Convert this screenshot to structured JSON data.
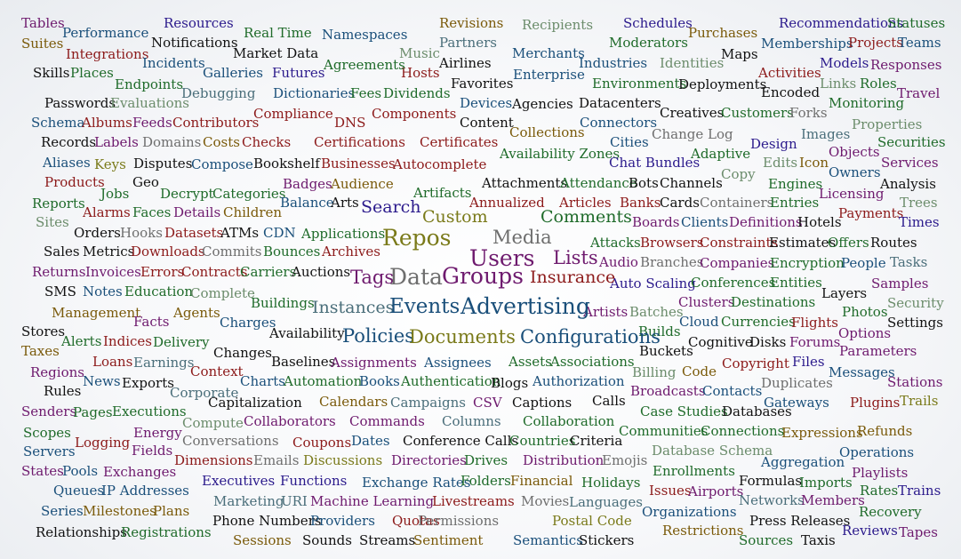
{
  "colors": {
    "1": "#2b1a8c",
    "2": "#7a5a0a",
    "3": "#1f6b2a",
    "4": "#6e1a6e",
    "5": "#8c1a1a",
    "6": "#1a4f7a",
    "7": "#4a6e7a",
    "8": "#6b8c6b",
    "9": "#111111",
    "10": "#6e6e6e",
    "11": "#7a7a1a"
  },
  "words": [
    [
      "Tables",
      4,
      14
    ],
    [
      "Suites",
      2,
      14
    ],
    [
      "Skills",
      9,
      14
    ],
    [
      "Passwords",
      9,
      14
    ],
    [
      "Schema",
      6,
      14
    ],
    [
      "Records",
      9,
      14
    ],
    [
      "Aliases",
      6,
      14
    ],
    [
      "Products",
      5,
      14
    ],
    [
      "Reports",
      3,
      14
    ],
    [
      "Sites",
      8,
      14
    ],
    [
      "Sales",
      9,
      14
    ],
    [
      "Returns",
      4,
      14
    ],
    [
      "SMS",
      9,
      14
    ],
    [
      "Stores",
      9,
      14
    ],
    [
      "Taxes",
      2,
      14
    ],
    [
      "Regions",
      4,
      14
    ],
    [
      "Rules",
      9,
      14
    ],
    [
      "Senders",
      4,
      14
    ],
    [
      "Scopes",
      3,
      14
    ],
    [
      "Servers",
      6,
      14
    ],
    [
      "States",
      4,
      14
    ],
    [
      "Queues",
      6,
      14
    ],
    [
      "Series",
      6,
      14
    ],
    [
      "Relationships",
      9,
      14
    ],
    [
      "Performance",
      6,
      14
    ],
    [
      "Integrations",
      5,
      14
    ],
    [
      "Places",
      3,
      14
    ],
    [
      "Endpoints",
      3,
      14
    ],
    [
      "Evaluations",
      8,
      14
    ],
    [
      "Albums",
      5,
      14
    ],
    [
      "Feeds",
      4,
      14
    ],
    [
      "Labels",
      4,
      14
    ],
    [
      "Keys",
      11,
      14
    ],
    [
      "Geo",
      9,
      14
    ],
    [
      "Jobs",
      3,
      14
    ],
    [
      "Alarms",
      5,
      14
    ],
    [
      "Faces",
      3,
      14
    ],
    [
      "Orders",
      9,
      14
    ],
    [
      "Hooks",
      10,
      14
    ],
    [
      "Metrics",
      9,
      14
    ],
    [
      "Invoices",
      4,
      14
    ],
    [
      "Notes",
      6,
      14
    ],
    [
      "Management",
      2,
      14
    ],
    [
      "Alerts",
      3,
      14
    ],
    [
      "Indices",
      5,
      14
    ],
    [
      "Loans",
      5,
      14
    ],
    [
      "News",
      6,
      14
    ],
    [
      "Pages",
      3,
      14
    ],
    [
      "Logging",
      5,
      14
    ],
    [
      "Pools",
      6,
      14
    ],
    [
      "IP Addresses",
      6,
      14
    ],
    [
      "Milestones",
      2,
      14
    ],
    [
      "Registrations",
      3,
      14
    ],
    [
      "Resources",
      1,
      14
    ],
    [
      "Notifications",
      9,
      14
    ],
    [
      "Incidents",
      6,
      14
    ],
    [
      "Galleries",
      6,
      14
    ],
    [
      "Debugging",
      7,
      14
    ],
    [
      "Contributors",
      5,
      14
    ],
    [
      "Domains",
      10,
      14
    ],
    [
      "Disputes",
      9,
      14
    ],
    [
      "Decrypt",
      3,
      14
    ],
    [
      "Details",
      4,
      14
    ],
    [
      "Datasets",
      5,
      14
    ],
    [
      "Downloads",
      5,
      14
    ],
    [
      "Errors",
      5,
      14
    ],
    [
      "Education",
      3,
      14
    ],
    [
      "Facts",
      4,
      14
    ],
    [
      "Agents",
      2,
      14
    ],
    [
      "Delivery",
      3,
      14
    ],
    [
      "Earnings",
      7,
      14
    ],
    [
      "Exports",
      9,
      14
    ],
    [
      "Executions",
      3,
      14
    ],
    [
      "Energy",
      4,
      14
    ],
    [
      "Fields",
      4,
      14
    ],
    [
      "Exchanges",
      4,
      14
    ],
    [
      "Dimensions",
      5,
      14
    ],
    [
      "Executives",
      1,
      14
    ],
    [
      "Plans",
      2,
      14
    ],
    [
      "Real Time",
      3,
      14
    ],
    [
      "Market Data",
      9,
      14
    ],
    [
      "Futures",
      1,
      14
    ],
    [
      "Compliance",
      5,
      14
    ],
    [
      "Costs",
      2,
      14
    ],
    [
      "Checks",
      5,
      14
    ],
    [
      "Compose",
      6,
      14
    ],
    [
      "Categories",
      3,
      14
    ],
    [
      "Children",
      2,
      14
    ],
    [
      "ATMs",
      9,
      14
    ],
    [
      "Commits",
      10,
      14
    ],
    [
      "Contracts",
      5,
      14
    ],
    [
      "Complete",
      8,
      14
    ],
    [
      "Charges",
      6,
      14
    ],
    [
      "Changes",
      9,
      14
    ],
    [
      "Context",
      5,
      14
    ],
    [
      "Corporate",
      7,
      14
    ],
    [
      "Capitalization",
      9,
      14
    ],
    [
      "Compute",
      8,
      14
    ],
    [
      "Conversations",
      10,
      14
    ],
    [
      "Emails",
      10,
      14
    ],
    [
      "Functions",
      1,
      14
    ],
    [
      "Marketing",
      7,
      14
    ],
    [
      "URI",
      7,
      14
    ],
    [
      "Phone Numbers",
      9,
      14
    ],
    [
      "Sessions",
      2,
      14
    ],
    [
      "Namespaces",
      6,
      14
    ],
    [
      "Music",
      8,
      14
    ],
    [
      "Hosts",
      5,
      14
    ],
    [
      "Agreements",
      3,
      14
    ],
    [
      "Dictionaries",
      6,
      14
    ],
    [
      "Fees",
      3,
      14
    ],
    [
      "DNS",
      5,
      14
    ],
    [
      "Certifications",
      5,
      14
    ],
    [
      "Bookshelf",
      9,
      14
    ],
    [
      "Businesses",
      5,
      14
    ],
    [
      "Badges",
      4,
      14
    ],
    [
      "Audience",
      2,
      14
    ],
    [
      "Balance",
      6,
      14
    ],
    [
      "Arts",
      9,
      14
    ],
    [
      "CDN",
      6,
      14
    ],
    [
      "Applications",
      3,
      14
    ],
    [
      "Archives",
      5,
      14
    ],
    [
      "Bounces",
      3,
      14
    ],
    [
      "Carriers",
      3,
      14
    ],
    [
      "Auctions",
      9,
      14
    ],
    [
      "Buildings",
      3,
      14
    ],
    [
      "Availability",
      9,
      14
    ],
    [
      "Baselines",
      9,
      14
    ],
    [
      "Assignments",
      4,
      14
    ],
    [
      "Charts",
      6,
      14
    ],
    [
      "Automation",
      3,
      14
    ],
    [
      "Books",
      6,
      14
    ],
    [
      "Calendars",
      2,
      14
    ],
    [
      "Campaigns",
      7,
      14
    ],
    [
      "Collaborators",
      4,
      14
    ],
    [
      "Commands",
      4,
      14
    ],
    [
      "Coupons",
      5,
      14
    ],
    [
      "Dates",
      6,
      14
    ],
    [
      "Discussions",
      11,
      14
    ],
    [
      "Machine Learning",
      4,
      14
    ],
    [
      "Providers",
      6,
      14
    ],
    [
      "Sounds",
      9,
      14
    ],
    [
      "Quotas",
      5,
      14
    ],
    [
      "Streams",
      9,
      14
    ],
    [
      "Revisions",
      2,
      14
    ],
    [
      "Recipients",
      8,
      14
    ],
    [
      "Partners",
      7,
      14
    ],
    [
      "Airlines",
      9,
      14
    ],
    [
      "Dividends",
      3,
      14
    ],
    [
      "Favorites",
      9,
      14
    ],
    [
      "Devices",
      6,
      14
    ],
    [
      "Components",
      5,
      14
    ],
    [
      "Content",
      9,
      14
    ],
    [
      "Certificates",
      5,
      14
    ],
    [
      "Autocomplete",
      5,
      14
    ],
    [
      "Artifacts",
      3,
      14
    ],
    [
      "Annualized",
      5,
      14
    ],
    [
      "Attachments",
      9,
      14
    ],
    [
      "Collections",
      2,
      14
    ],
    [
      "Assignees",
      6,
      14
    ],
    [
      "Assets",
      3,
      14
    ],
    [
      "Associations",
      3,
      14
    ],
    [
      "Authentication",
      3,
      14
    ],
    [
      "Blogs",
      9,
      14
    ],
    [
      "Authorization",
      6,
      14
    ],
    [
      "CSV",
      4,
      14
    ],
    [
      "Captions",
      9,
      14
    ],
    [
      "Calls",
      9,
      14
    ],
    [
      "Columns",
      7,
      14
    ],
    [
      "Collaboration",
      3,
      14
    ],
    [
      "Conference Calls",
      9,
      14
    ],
    [
      "Countries",
      3,
      14
    ],
    [
      "Criteria",
      9,
      14
    ],
    [
      "Directories",
      4,
      14
    ],
    [
      "Drives",
      3,
      14
    ],
    [
      "Distribution",
      4,
      14
    ],
    [
      "Emojis",
      10,
      14
    ],
    [
      "Exchange Rates",
      6,
      14
    ],
    [
      "Folders",
      3,
      14
    ],
    [
      "Financial",
      2,
      14
    ],
    [
      "Holidays",
      3,
      14
    ],
    [
      "Livestreams",
      5,
      14
    ],
    [
      "Movies",
      10,
      14
    ],
    [
      "Languages",
      7,
      14
    ],
    [
      "Permissions",
      10,
      14
    ],
    [
      "Postal Code",
      11,
      14
    ],
    [
      "Sentiment",
      2,
      14
    ],
    [
      "Semantics",
      6,
      14
    ],
    [
      "Stickers",
      9,
      14
    ],
    [
      "Merchants",
      6,
      14
    ],
    [
      "Enterprise",
      6,
      14
    ],
    [
      "Agencies",
      9,
      14
    ],
    [
      "Availability Zones",
      3,
      14
    ],
    [
      "Attendance",
      3,
      14
    ],
    [
      "Articles",
      5,
      14
    ],
    [
      "Schedules",
      1,
      14
    ],
    [
      "Moderators",
      3,
      14
    ],
    [
      "Industries",
      6,
      14
    ],
    [
      "Environments",
      3,
      14
    ],
    [
      "Datacenters",
      9,
      14
    ],
    [
      "Connectors",
      6,
      14
    ],
    [
      "Cities",
      6,
      14
    ],
    [
      "Chat Bundles",
      1,
      14
    ],
    [
      "Bots",
      9,
      14
    ],
    [
      "Banks",
      5,
      14
    ],
    [
      "Boards",
      4,
      14
    ],
    [
      "Attacks",
      3,
      14
    ],
    [
      "Audio",
      4,
      14
    ],
    [
      "Auto Scaling",
      1,
      14
    ],
    [
      "Artists",
      4,
      14
    ],
    [
      "Batches",
      8,
      14
    ],
    [
      "Builds",
      3,
      14
    ],
    [
      "Buckets",
      9,
      14
    ],
    [
      "Billing",
      8,
      14
    ],
    [
      "Broadcasts",
      4,
      14
    ],
    [
      "Case Studies",
      3,
      14
    ],
    [
      "Communities",
      3,
      14
    ],
    [
      "Database Schema",
      8,
      14
    ],
    [
      "Enrollments",
      3,
      14
    ],
    [
      "Issues",
      5,
      14
    ],
    [
      "Airports",
      4,
      14
    ],
    [
      "Organizations",
      6,
      14
    ],
    [
      "Restrictions",
      2,
      14
    ],
    [
      "Purchases",
      2,
      14
    ],
    [
      "Identities",
      8,
      14
    ],
    [
      "Maps",
      9,
      14
    ],
    [
      "Deployments",
      9,
      14
    ],
    [
      "Creatives",
      9,
      14
    ],
    [
      "Change Log",
      10,
      14
    ],
    [
      "Adaptive",
      3,
      14
    ],
    [
      "Copy",
      8,
      14
    ],
    [
      "Channels",
      9,
      14
    ],
    [
      "Cards",
      9,
      14
    ],
    [
      "Containers",
      10,
      14
    ],
    [
      "Clients",
      6,
      14
    ],
    [
      "Definitions",
      4,
      14
    ],
    [
      "Browsers",
      5,
      14
    ],
    [
      "Branches",
      10,
      14
    ],
    [
      "Companies",
      4,
      14
    ],
    [
      "Conferences",
      3,
      14
    ],
    [
      "Clusters",
      4,
      14
    ],
    [
      "Destinations",
      3,
      14
    ],
    [
      "Cloud",
      6,
      14
    ],
    [
      "Currencies",
      3,
      14
    ],
    [
      "Cognitive",
      9,
      14
    ],
    [
      "Disks",
      9,
      14
    ],
    [
      "Code",
      2,
      14
    ],
    [
      "Copyright",
      5,
      14
    ],
    [
      "Contacts",
      6,
      14
    ],
    [
      "Duplicates",
      10,
      14
    ],
    [
      "Databases",
      9,
      14
    ],
    [
      "Connections",
      3,
      14
    ],
    [
      "Formulas",
      9,
      14
    ],
    [
      "Networks",
      7,
      14
    ],
    [
      "Press Releases",
      9,
      14
    ],
    [
      "Sources",
      3,
      14
    ],
    [
      "Taxis",
      9,
      14
    ],
    [
      "Recommendations",
      1,
      14
    ],
    [
      "Memberships",
      6,
      14
    ],
    [
      "Activities",
      5,
      14
    ],
    [
      "Encoded",
      9,
      14
    ],
    [
      "Customers",
      3,
      14
    ],
    [
      "Forks",
      10,
      14
    ],
    [
      "Design",
      1,
      14
    ],
    [
      "Images",
      7,
      14
    ],
    [
      "Edits",
      8,
      14
    ],
    [
      "Icon",
      2,
      14
    ],
    [
      "Engines",
      3,
      14
    ],
    [
      "Entries",
      3,
      14
    ],
    [
      "Hotels",
      9,
      14
    ],
    [
      "Constraints",
      5,
      14
    ],
    [
      "Estimates",
      9,
      14
    ],
    [
      "Encryption",
      3,
      14
    ],
    [
      "Entities",
      3,
      14
    ],
    [
      "Flights",
      5,
      14
    ],
    [
      "Forums",
      4,
      14
    ],
    [
      "Files",
      1,
      14
    ],
    [
      "Gateways",
      6,
      14
    ],
    [
      "Expressions",
      2,
      14
    ],
    [
      "Aggregation",
      6,
      14
    ],
    [
      "Imports",
      3,
      14
    ],
    [
      "Members",
      4,
      14
    ],
    [
      "Statuses",
      3,
      14
    ],
    [
      "Projects",
      5,
      14
    ],
    [
      "Teams",
      6,
      14
    ],
    [
      "Models",
      1,
      14
    ],
    [
      "Responses",
      4,
      14
    ],
    [
      "Links",
      8,
      14
    ],
    [
      "Roles",
      3,
      14
    ],
    [
      "Travel",
      4,
      14
    ],
    [
      "Monitoring",
      3,
      14
    ],
    [
      "Properties",
      8,
      14
    ],
    [
      "Securities",
      3,
      14
    ],
    [
      "Objects",
      4,
      14
    ],
    [
      "Services",
      4,
      14
    ],
    [
      "Owners",
      6,
      14
    ],
    [
      "Analysis",
      9,
      14
    ],
    [
      "Licensing",
      4,
      14
    ],
    [
      "Trees",
      8,
      14
    ],
    [
      "Payments",
      5,
      14
    ],
    [
      "Times",
      1,
      14
    ],
    [
      "Offers",
      3,
      14
    ],
    [
      "Routes",
      9,
      14
    ],
    [
      "People",
      6,
      14
    ],
    [
      "Tasks",
      7,
      14
    ],
    [
      "Samples",
      4,
      14
    ],
    [
      "Layers",
      9,
      14
    ],
    [
      "Security",
      8,
      14
    ],
    [
      "Photos",
      3,
      14
    ],
    [
      "Settings",
      9,
      14
    ],
    [
      "Options",
      4,
      14
    ],
    [
      "Parameters",
      4,
      14
    ],
    [
      "Messages",
      6,
      14
    ],
    [
      "Stations",
      4,
      14
    ],
    [
      "Trails",
      11,
      14
    ],
    [
      "Plugins",
      5,
      14
    ],
    [
      "Refunds",
      2,
      14
    ],
    [
      "Operations",
      6,
      14
    ],
    [
      "Playlists",
      4,
      14
    ],
    [
      "Rates",
      3,
      14
    ],
    [
      "Trains",
      1,
      14
    ],
    [
      "Recovery",
      3,
      14
    ],
    [
      "Reviews",
      1,
      14
    ],
    [
      "Tapes",
      4,
      14
    ],
    [
      "Search",
      1,
      18
    ],
    [
      "Custom",
      11,
      18
    ],
    [
      "Comments",
      3,
      18
    ],
    [
      "Repos",
      11,
      24
    ],
    [
      "Media",
      10,
      20
    ],
    [
      "Users",
      4,
      24
    ],
    [
      "Lists",
      4,
      20
    ],
    [
      "Tags",
      4,
      20
    ],
    [
      "Data",
      10,
      24
    ],
    [
      "Groups",
      4,
      24
    ],
    [
      "Insurance",
      5,
      18
    ],
    [
      "Instances",
      7,
      18
    ],
    [
      "Events",
      6,
      22
    ],
    [
      "Advertising",
      6,
      24
    ],
    [
      "Policies",
      6,
      20
    ],
    [
      "Documents",
      11,
      20
    ],
    [
      "Configurations",
      6,
      20
    ]
  ]
}
